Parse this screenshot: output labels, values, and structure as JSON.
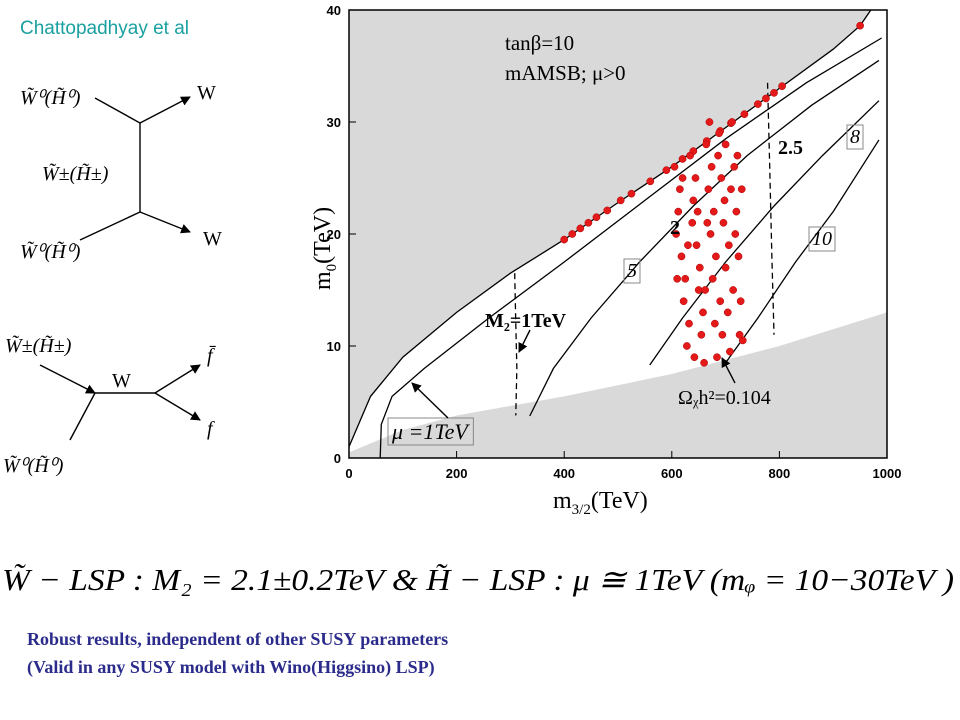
{
  "header": {
    "credit": "Chattopadhyay et al"
  },
  "diagrams": {
    "top": {
      "in1": "W̃⁰(H̃⁰)",
      "in2": "W̃⁰(H̃⁰)",
      "exchange": "W̃±(H̃±)",
      "out1": "W",
      "out2": "W"
    },
    "bottom": {
      "in1": "W̃±(H̃±)",
      "in2": "W̃⁰(H̃⁰)",
      "propagator": "W",
      "out1": "f̄",
      "out2": "f"
    }
  },
  "chart_data": {
    "type": "scatter",
    "xlim": [
      0,
      1000
    ],
    "ylim": [
      0,
      40
    ],
    "xticks": [
      0,
      200,
      400,
      600,
      800,
      1000
    ],
    "yticks": [
      0,
      10,
      20,
      30,
      40
    ],
    "x_label": {
      "main": "m",
      "sub": "3/2",
      "unit": "(TeV)"
    },
    "y_label": {
      "main": "m",
      "sub": "0",
      "unit": "(TeV)"
    },
    "region_color": "#d9d9d9",
    "upper_boundary": {
      "x": [
        0,
        40,
        100,
        200,
        300,
        400,
        500,
        600,
        700,
        800,
        900,
        950,
        970
      ],
      "y": [
        1,
        5.5,
        9,
        13,
        16.5,
        19.5,
        22.8,
        26,
        29.5,
        33,
        36.5,
        38.6,
        40
      ]
    },
    "lower_boundary": {
      "x": [
        0,
        100,
        200,
        400,
        600,
        800,
        1000
      ],
      "y": [
        0.5,
        2.5,
        3.8,
        5.5,
        7.5,
        10,
        13
      ]
    },
    "contours": [
      {
        "dashed": false,
        "x": [
          58,
          60,
          80,
          140,
          260,
          400,
          550,
          700,
          850,
          990
        ],
        "y": [
          0,
          3,
          5.5,
          8,
          12.5,
          17.5,
          23,
          28.5,
          33.5,
          37.5
        ]
      },
      {
        "dashed": false,
        "x": [
          336,
          380,
          450,
          540,
          640,
          740,
          860,
          985
        ],
        "y": [
          3.75,
          8,
          12.5,
          17.5,
          22.5,
          27,
          31.5,
          35.5
        ]
      },
      {
        "dashed": false,
        "x": [
          559,
          620,
          700,
          790,
          880,
          985
        ],
        "y": [
          8.3,
          12.5,
          17.5,
          22.5,
          27,
          31.9
        ]
      },
      {
        "dashed": false,
        "x": [
          700,
          760,
          830,
          900,
          985
        ],
        "y": [
          8.5,
          12.5,
          17.5,
          22,
          28.4
        ]
      },
      {
        "dashed": true,
        "x": [
          308,
          310,
          312,
          310
        ],
        "y": [
          16.5,
          12,
          8,
          3.8
        ]
      },
      {
        "dashed": true,
        "x": [
          778,
          782,
          786,
          790
        ],
        "y": [
          33.5,
          26,
          18,
          11
        ]
      }
    ],
    "points": {
      "color": "#e41a1a",
      "x": [
        400,
        415,
        430,
        445,
        460,
        480,
        505,
        525,
        560,
        590,
        620,
        640,
        665,
        690,
        710,
        735,
        760,
        775,
        790,
        805,
        950,
        605,
        612,
        618,
        622,
        628,
        634,
        640,
        646,
        650,
        655,
        660,
        664,
        668,
        672,
        676,
        680,
        684,
        688,
        692,
        696,
        700,
        704,
        708,
        712,
        716,
        720,
        724,
        728,
        732,
        608,
        615,
        625,
        632,
        638,
        644,
        652,
        658,
        666,
        674,
        682,
        690,
        698,
        706,
        714,
        722,
        726,
        610,
        630,
        648,
        662,
        678,
        694,
        710,
        718,
        700,
        642,
        670,
        686,
        730,
        620
      ],
      "y": [
        19.5,
        20.0,
        20.5,
        21.0,
        21.5,
        22.1,
        23.0,
        23.6,
        24.7,
        25.7,
        26.7,
        27.4,
        28.3,
        29.2,
        29.9,
        30.7,
        31.6,
        32.1,
        32.6,
        33.2,
        38.6,
        26,
        22,
        18,
        14,
        10,
        27,
        23,
        19,
        15,
        11,
        8.5,
        28,
        24,
        20,
        16,
        12,
        9,
        29,
        25,
        21,
        17,
        13,
        9.5,
        30,
        26,
        22,
        18,
        14,
        10.5,
        20,
        24,
        16,
        12,
        21,
        25,
        17,
        13,
        21,
        26,
        18,
        14,
        23,
        19,
        15,
        27,
        11,
        16,
        19,
        22,
        15,
        22,
        11,
        24,
        20,
        28,
        9,
        30,
        27,
        24,
        25
      ]
    },
    "annotations": [
      "tanβ=10",
      "mAMSB; μ>0",
      "2.5",
      "8",
      "2",
      "10",
      "5",
      "M₂=1TeV",
      "μ =1TeV",
      "Ωᵪh²=0.104"
    ]
  },
  "formula": "W̃ − LSP : M₂ = 2.1±0.2TeV  &  H̃ − LSP : μ ≅ 1TeV (mᵩ = 10−30TeV )",
  "notes": [
    "Robust results, independent of other SUSY parameters",
    "(Valid in any SUSY model with Wino(Higgsino) LSP)"
  ]
}
